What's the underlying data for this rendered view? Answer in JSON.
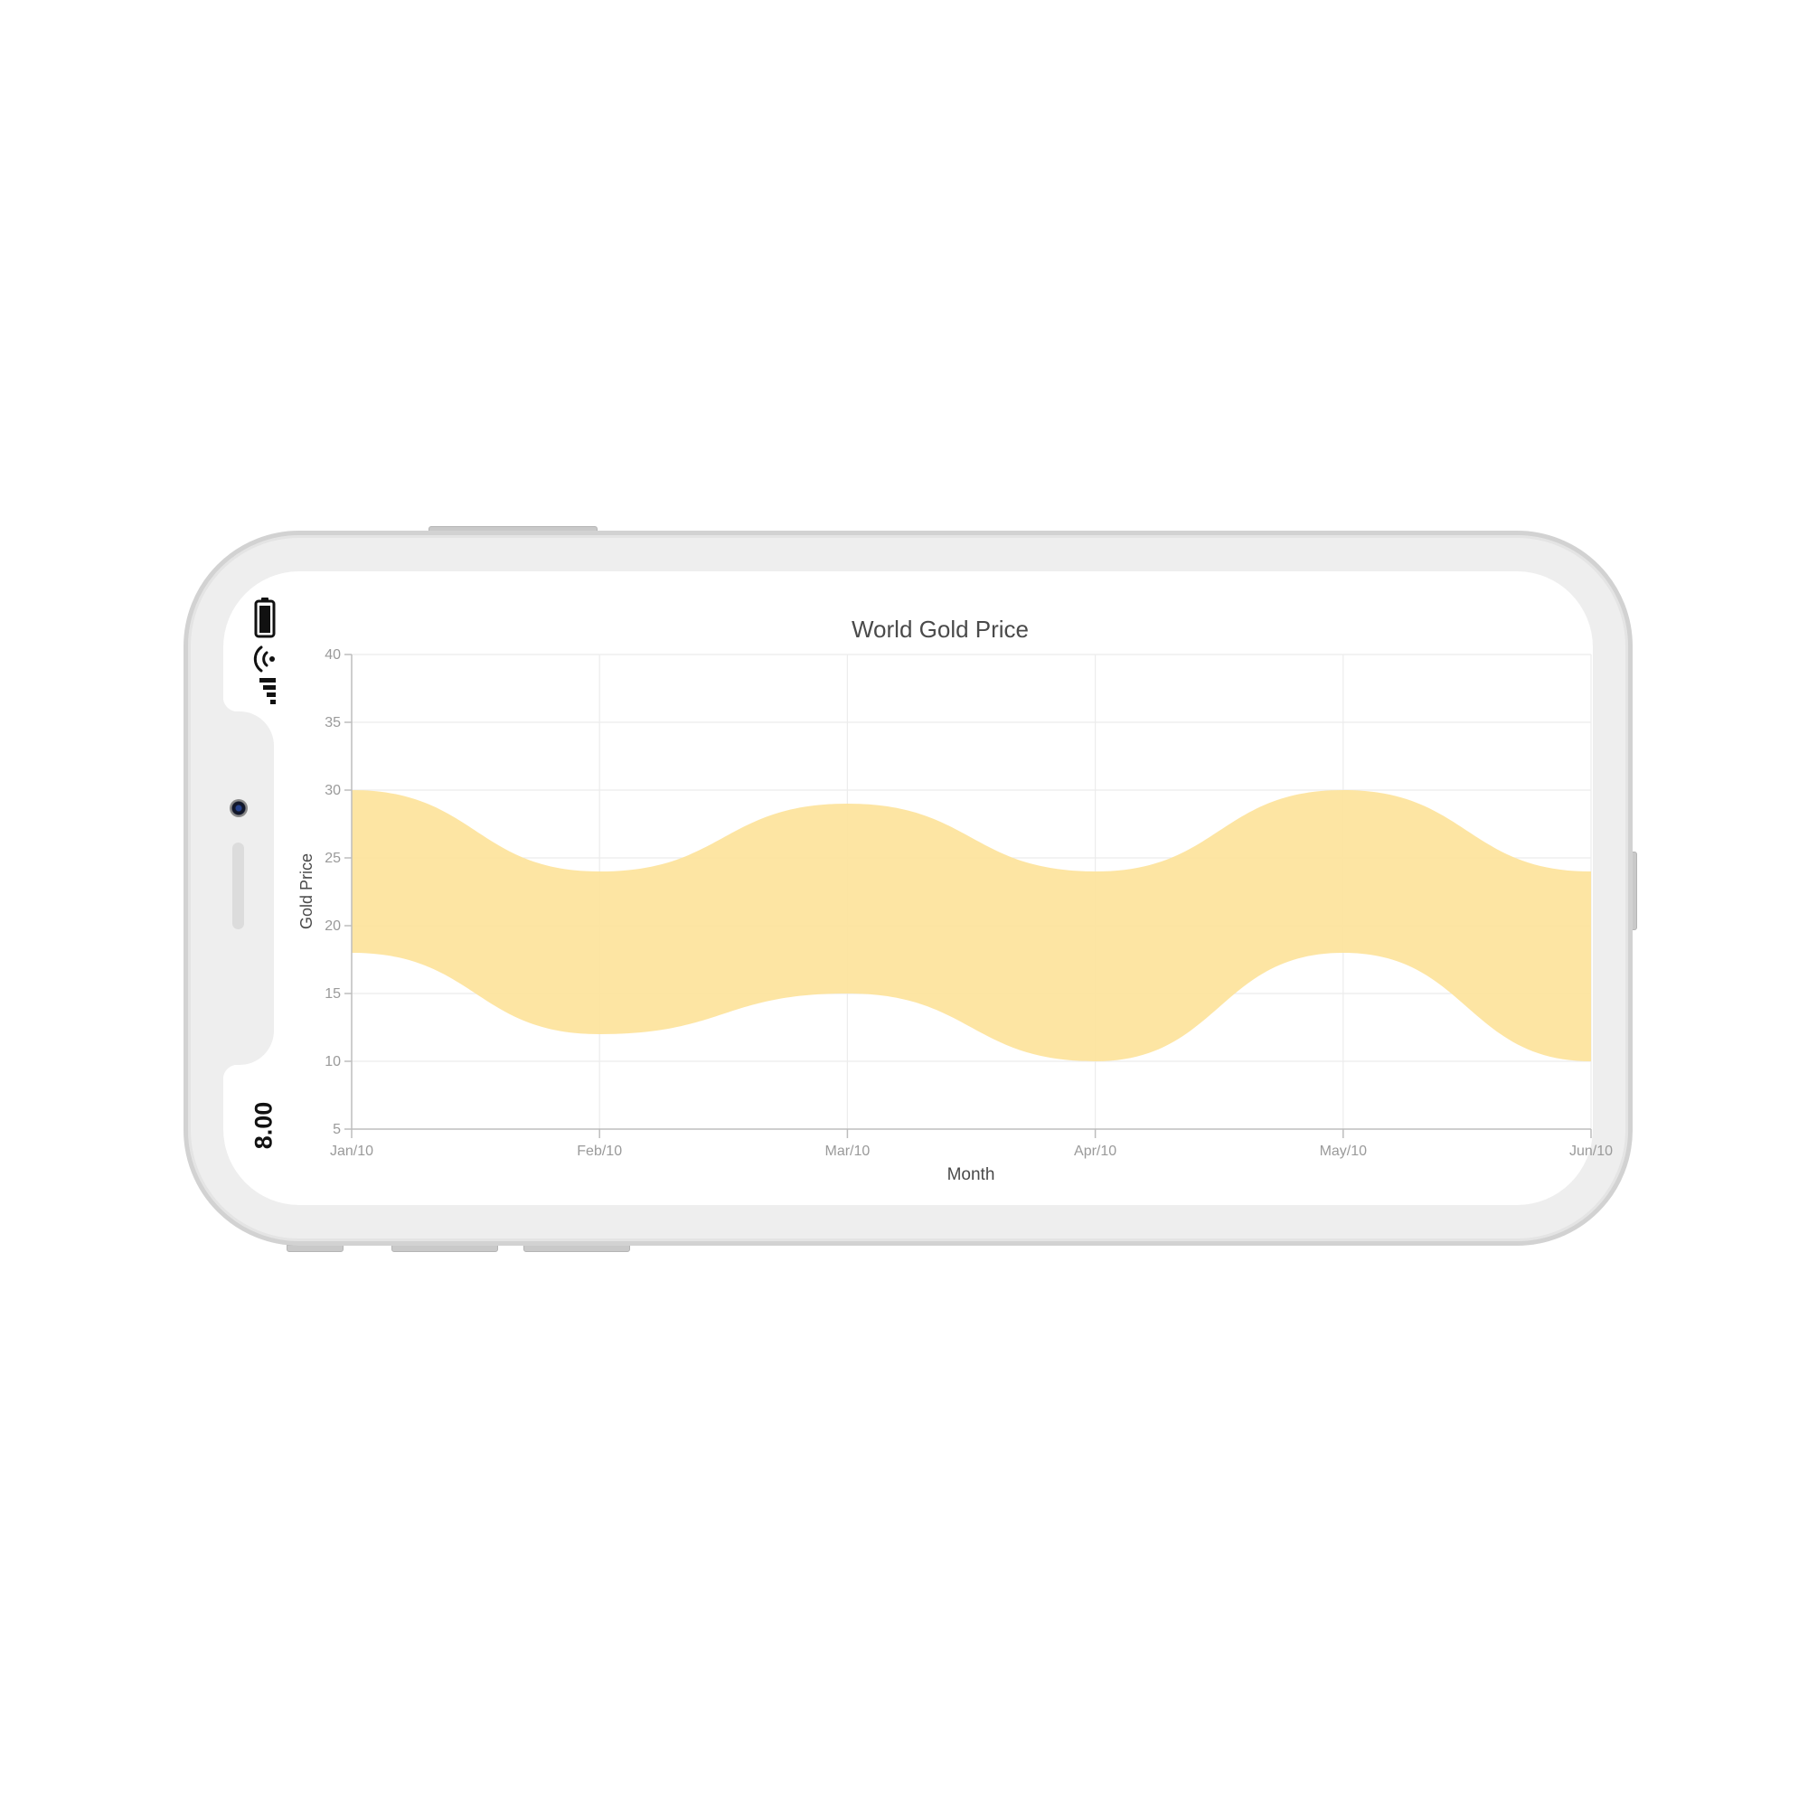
{
  "device": {
    "status_time": "8.00"
  },
  "colors": {
    "band_fill": "#fde49e",
    "grid": "#ececec",
    "axis": "#bdbdbd",
    "tick_text": "#9a9a9a",
    "title_text": "#4a4a4a"
  },
  "chart_data": {
    "type": "area",
    "subtype": "spline-range-area",
    "title": "World Gold Price",
    "xlabel": "Month",
    "ylabel": "Gold Price",
    "categories": [
      "Jan/10",
      "Feb/10",
      "Mar/10",
      "Apr/10",
      "May/10",
      "Jun/10"
    ],
    "series": [
      {
        "high": [
          30,
          24,
          29,
          24,
          30,
          24
        ],
        "low": [
          18,
          12,
          15,
          10,
          18,
          10
        ]
      }
    ],
    "ylim": [
      5,
      40
    ],
    "yticks": [
      5,
      10,
      15,
      20,
      25,
      30,
      35,
      40
    ],
    "grid": true,
    "legend": "none"
  }
}
